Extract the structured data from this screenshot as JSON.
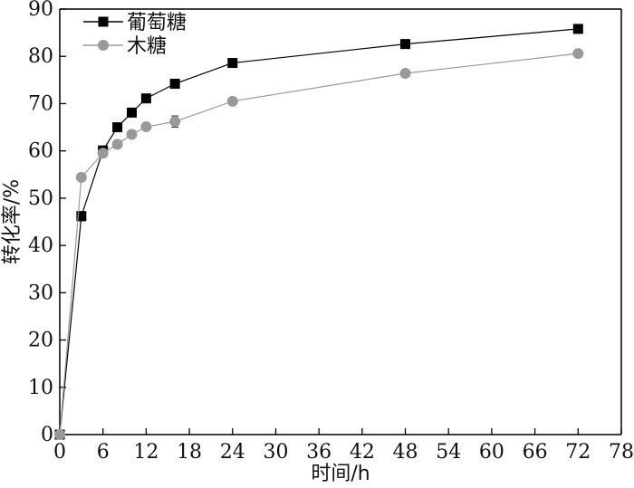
{
  "chart_data": {
    "type": "line",
    "xlabel": "时间/h",
    "ylabel": "转化率/%",
    "xlim": [
      0,
      78
    ],
    "ylim": [
      0,
      90
    ],
    "xticks": [
      0,
      6,
      12,
      18,
      24,
      30,
      36,
      42,
      48,
      54,
      60,
      66,
      72,
      78
    ],
    "yticks": [
      0,
      10,
      20,
      30,
      40,
      50,
      60,
      70,
      80,
      90
    ],
    "grid": false,
    "legend_position": "top-left",
    "series": [
      {
        "name": "葡萄糖",
        "marker": "square",
        "color": "#000000",
        "x": [
          0,
          3,
          6,
          8,
          10,
          12,
          16,
          24,
          48,
          72
        ],
        "y": [
          0,
          46.2,
          60.1,
          65.0,
          68.1,
          71.1,
          74.2,
          78.6,
          82.6,
          85.8
        ],
        "err": [
          0,
          1.0,
          0.6,
          0.5,
          0.5,
          0.5,
          0.5,
          0.5,
          0.5,
          0.5
        ]
      },
      {
        "name": "木糖",
        "marker": "circle",
        "color": "#999999",
        "x": [
          0,
          3,
          6,
          8,
          10,
          12,
          16,
          24,
          48,
          72
        ],
        "y": [
          0,
          54.4,
          59.5,
          61.4,
          63.5,
          65.1,
          66.2,
          70.5,
          76.4,
          80.6
        ],
        "err": [
          0,
          0.5,
          0.5,
          0.5,
          0.5,
          0.5,
          1.2,
          0.5,
          0.5,
          0.5
        ]
      }
    ]
  }
}
